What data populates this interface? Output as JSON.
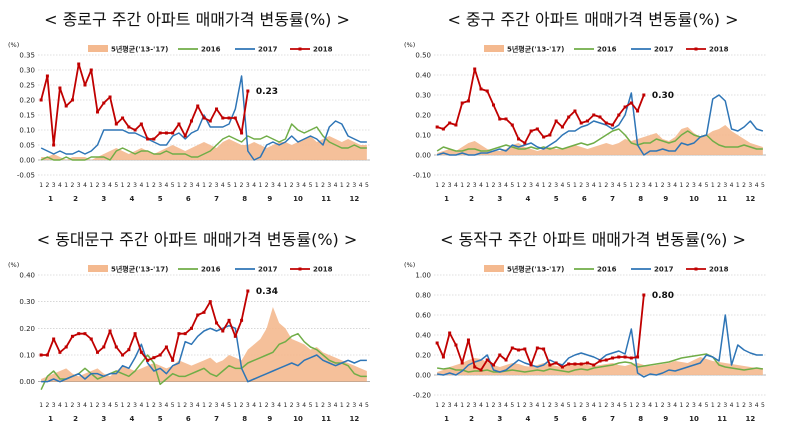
{
  "colors": {
    "avg": "#f4b98f",
    "y2016": "#70ad47",
    "y2017": "#2e75b6",
    "y2018": "#c00000",
    "grid": "#bfbfbf"
  },
  "chart_data": [
    {
      "type": "line",
      "title": "< 종로구 주간 아파트 매매가격 변동률(%) >",
      "ylabel": "(%)",
      "ylim": [
        -0.05,
        0.35
      ],
      "yticks": [
        "0.35",
        "0.30",
        "0.25",
        "0.20",
        "0.15",
        "0.10",
        "0.05",
        "0.00",
        "-0.05"
      ],
      "ytick_values": [
        0.35,
        0.3,
        0.25,
        0.2,
        0.15,
        0.1,
        0.05,
        0.0,
        -0.05
      ],
      "months": [
        "1",
        "2",
        "3",
        "4",
        "5",
        "6",
        "7",
        "8",
        "9",
        "10",
        "11",
        "12"
      ],
      "weeks_per_month": [
        4,
        4,
        5,
        4,
        5,
        4,
        5,
        4,
        4,
        5,
        4,
        5
      ],
      "legend": [
        "5년평균('13-'17)",
        "2016",
        "2017",
        "2018"
      ],
      "annotation": "0.23",
      "series": [
        {
          "name": "5년평균('13-'17)",
          "values": [
            0.01,
            0.01,
            0.02,
            0.01,
            0.0,
            0.01,
            0.01,
            0.01,
            0.0,
            0.01,
            0.02,
            0.03,
            0.04,
            0.03,
            0.02,
            0.03,
            0.04,
            0.03,
            0.02,
            0.03,
            0.04,
            0.05,
            0.04,
            0.03,
            0.04,
            0.05,
            0.06,
            0.05,
            0.04,
            0.06,
            0.07,
            0.06,
            0.05,
            0.05,
            0.06,
            0.05,
            0.04,
            0.05,
            0.06,
            0.06,
            0.05,
            0.06,
            0.07,
            0.08,
            0.06,
            0.07,
            0.08,
            0.07,
            0.06,
            0.07,
            0.06,
            0.05,
            0.05
          ]
        },
        {
          "name": "2016",
          "values": [
            0.0,
            0.01,
            0.0,
            0.0,
            0.01,
            0.0,
            0.0,
            0.0,
            0.01,
            0.01,
            0.01,
            0.0,
            0.03,
            0.04,
            0.03,
            0.02,
            0.03,
            0.03,
            0.02,
            0.02,
            0.03,
            0.02,
            0.02,
            0.02,
            0.01,
            0.01,
            0.02,
            0.03,
            0.05,
            0.07,
            0.08,
            0.07,
            0.06,
            0.08,
            0.07,
            0.07,
            0.08,
            0.07,
            0.06,
            0.07,
            0.12,
            0.1,
            0.09,
            0.1,
            0.11,
            0.08,
            0.06,
            0.05,
            0.04,
            0.04,
            0.05,
            0.04,
            0.04
          ]
        },
        {
          "name": "2017",
          "values": [
            0.04,
            0.03,
            0.02,
            0.03,
            0.02,
            0.02,
            0.03,
            0.02,
            0.03,
            0.05,
            0.1,
            0.1,
            0.1,
            0.1,
            0.09,
            0.09,
            0.08,
            0.07,
            0.06,
            0.05,
            0.05,
            0.08,
            0.09,
            0.07,
            0.09,
            0.1,
            0.15,
            0.11,
            0.11,
            0.11,
            0.12,
            0.17,
            0.28,
            0.03,
            0.0,
            0.01,
            0.05,
            0.06,
            0.05,
            0.06,
            0.08,
            0.06,
            0.07,
            0.08,
            0.07,
            0.05,
            0.11,
            0.13,
            0.12,
            0.08,
            0.07,
            0.06,
            0.06
          ]
        },
        {
          "name": "2018",
          "values": [
            0.2,
            0.28,
            0.05,
            0.24,
            0.18,
            0.2,
            0.32,
            0.25,
            0.3,
            0.16,
            0.19,
            0.21,
            0.12,
            0.14,
            0.11,
            0.1,
            0.12,
            0.07,
            0.07,
            0.09,
            0.09,
            0.09,
            0.12,
            0.08,
            0.13,
            0.18,
            0.14,
            0.13,
            0.17,
            0.14,
            0.14,
            0.14,
            0.09,
            0.23
          ]
        }
      ]
    },
    {
      "type": "line",
      "title": "< 중구 주간 아파트 매매가격 변동률(%) >",
      "ylabel": "(%)",
      "ylim": [
        -0.1,
        0.5
      ],
      "yticks": [
        "0.50",
        "0.40",
        "0.30",
        "0.20",
        "0.10",
        "0.00",
        "-0.10"
      ],
      "ytick_values": [
        0.5,
        0.4,
        0.3,
        0.2,
        0.1,
        0.0,
        -0.1
      ],
      "months": [
        "1",
        "2",
        "3",
        "4",
        "5",
        "6",
        "7",
        "8",
        "9",
        "10",
        "11",
        "12"
      ],
      "weeks_per_month": [
        4,
        4,
        5,
        4,
        5,
        4,
        5,
        4,
        4,
        5,
        4,
        5
      ],
      "legend": [
        "5년평균('13-'17)",
        "2016",
        "2017",
        "2018"
      ],
      "annotation": "0.30",
      "series": [
        {
          "name": "5년평균('13-'17)",
          "values": [
            0.01,
            0.02,
            0.03,
            0.02,
            0.04,
            0.06,
            0.07,
            0.05,
            0.03,
            0.02,
            0.02,
            0.03,
            0.05,
            0.06,
            0.04,
            0.03,
            0.02,
            0.03,
            0.04,
            0.03,
            0.03,
            0.04,
            0.05,
            0.04,
            0.03,
            0.04,
            0.05,
            0.06,
            0.05,
            0.06,
            0.08,
            0.07,
            0.08,
            0.09,
            0.1,
            0.11,
            0.08,
            0.07,
            0.09,
            0.13,
            0.14,
            0.11,
            0.09,
            0.1,
            0.12,
            0.13,
            0.15,
            0.12,
            0.1,
            0.08,
            0.06,
            0.05,
            0.04
          ]
        },
        {
          "name": "2016",
          "values": [
            0.02,
            0.04,
            0.03,
            0.02,
            0.02,
            0.03,
            0.03,
            0.02,
            0.02,
            0.03,
            0.04,
            0.05,
            0.04,
            0.03,
            0.03,
            0.04,
            0.03,
            0.04,
            0.03,
            0.04,
            0.03,
            0.04,
            0.05,
            0.06,
            0.05,
            0.06,
            0.08,
            0.1,
            0.12,
            0.13,
            0.1,
            0.06,
            0.05,
            0.06,
            0.06,
            0.08,
            0.07,
            0.06,
            0.07,
            0.1,
            0.12,
            0.1,
            0.09,
            0.1,
            0.07,
            0.05,
            0.04,
            0.04,
            0.04,
            0.05,
            0.04,
            0.03,
            0.03
          ]
        },
        {
          "name": "2017",
          "values": [
            0.0,
            0.01,
            0.0,
            0.0,
            0.01,
            0.0,
            0.0,
            0.01,
            0.01,
            0.02,
            0.03,
            0.02,
            0.05,
            0.04,
            0.05,
            0.06,
            0.04,
            0.03,
            0.05,
            0.07,
            0.1,
            0.12,
            0.12,
            0.14,
            0.15,
            0.17,
            0.16,
            0.15,
            0.13,
            0.15,
            0.2,
            0.31,
            0.05,
            0.0,
            0.02,
            0.02,
            0.03,
            0.02,
            0.02,
            0.06,
            0.05,
            0.06,
            0.09,
            0.1,
            0.28,
            0.3,
            0.27,
            0.13,
            0.12,
            0.14,
            0.17,
            0.13,
            0.12
          ]
        },
        {
          "name": "2018",
          "values": [
            0.14,
            0.13,
            0.16,
            0.15,
            0.26,
            0.27,
            0.43,
            0.33,
            0.32,
            0.25,
            0.18,
            0.18,
            0.15,
            0.08,
            0.06,
            0.12,
            0.13,
            0.09,
            0.1,
            0.17,
            0.14,
            0.19,
            0.22,
            0.16,
            0.17,
            0.2,
            0.19,
            0.16,
            0.15,
            0.2,
            0.24,
            0.26,
            0.22,
            0.3
          ]
        }
      ]
    },
    {
      "type": "line",
      "title": "< 동대문구 주간 아파트 매매가격 변동률(%) >",
      "ylabel": "(%)",
      "ylim": [
        -0.05,
        0.4
      ],
      "yticks": [
        "0.40",
        "0.30",
        "0.20",
        "0.10",
        "0.00"
      ],
      "ytick_values": [
        0.4,
        0.3,
        0.2,
        0.1,
        0.0
      ],
      "months": [
        "1",
        "2",
        "3",
        "4",
        "5",
        "6",
        "7",
        "8",
        "9",
        "10",
        "11",
        "12"
      ],
      "weeks_per_month": [
        4,
        4,
        5,
        4,
        5,
        4,
        5,
        4,
        4,
        5,
        4,
        5
      ],
      "legend": [
        "5년평균('13-'17)",
        "2016",
        "2017",
        "2018"
      ],
      "annotation": "0.34",
      "series": [
        {
          "name": "5년평균('13-'17)",
          "values": [
            0.01,
            0.02,
            0.03,
            0.04,
            0.05,
            0.03,
            0.02,
            0.03,
            0.04,
            0.05,
            0.03,
            0.02,
            0.04,
            0.06,
            0.05,
            0.04,
            0.05,
            0.06,
            0.07,
            0.06,
            0.05,
            0.06,
            0.08,
            0.07,
            0.06,
            0.07,
            0.08,
            0.09,
            0.07,
            0.08,
            0.1,
            0.09,
            0.08,
            0.12,
            0.14,
            0.16,
            0.2,
            0.28,
            0.22,
            0.2,
            0.16,
            0.15,
            0.14,
            0.12,
            0.13,
            0.11,
            0.1,
            0.09,
            0.08,
            0.07,
            0.06,
            0.05,
            0.04
          ]
        },
        {
          "name": "2016",
          "values": [
            -0.03,
            0.02,
            0.04,
            0.01,
            0.01,
            0.02,
            0.03,
            0.05,
            0.03,
            0.01,
            0.02,
            0.03,
            0.04,
            0.03,
            0.02,
            0.04,
            0.07,
            0.1,
            0.07,
            -0.01,
            0.01,
            0.03,
            0.02,
            0.02,
            0.03,
            0.04,
            0.05,
            0.03,
            0.02,
            0.04,
            0.06,
            0.05,
            0.05,
            0.07,
            0.08,
            0.09,
            0.1,
            0.11,
            0.14,
            0.15,
            0.17,
            0.18,
            0.15,
            0.13,
            0.12,
            0.1,
            0.08,
            0.07,
            0.07,
            0.06,
            0.03,
            0.02,
            0.02
          ]
        },
        {
          "name": "2017",
          "values": [
            0.0,
            0.0,
            0.01,
            0.0,
            0.01,
            0.02,
            0.03,
            0.01,
            0.03,
            0.03,
            0.02,
            0.03,
            0.03,
            0.06,
            0.05,
            0.09,
            0.14,
            0.07,
            0.04,
            0.05,
            0.03,
            0.06,
            0.07,
            0.15,
            0.14,
            0.17,
            0.19,
            0.2,
            0.19,
            0.2,
            0.21,
            0.2,
            0.05,
            0.0,
            0.01,
            0.02,
            0.03,
            0.04,
            0.05,
            0.06,
            0.07,
            0.06,
            0.08,
            0.09,
            0.1,
            0.08,
            0.07,
            0.06,
            0.07,
            0.08,
            0.07,
            0.08,
            0.08
          ]
        },
        {
          "name": "2018",
          "values": [
            0.1,
            0.1,
            0.16,
            0.11,
            0.13,
            0.17,
            0.18,
            0.18,
            0.16,
            0.11,
            0.13,
            0.19,
            0.13,
            0.1,
            0.12,
            0.18,
            0.11,
            0.08,
            0.09,
            0.1,
            0.13,
            0.08,
            0.18,
            0.18,
            0.2,
            0.25,
            0.26,
            0.3,
            0.22,
            0.19,
            0.23,
            0.17,
            0.23,
            0.34
          ]
        }
      ]
    },
    {
      "type": "line",
      "title": "< 동작구 주간 아파트 매매가격 변동률(%) >",
      "ylabel": "(%)",
      "ylim": [
        -0.2,
        1.0
      ],
      "yticks": [
        "1.00",
        "0.80",
        "0.60",
        "0.40",
        "0.20",
        "0.00",
        "-0.20"
      ],
      "ytick_values": [
        1.0,
        0.8,
        0.6,
        0.4,
        0.2,
        0.0,
        -0.2
      ],
      "months": [
        "1",
        "2",
        "3",
        "4",
        "5",
        "6",
        "7",
        "8",
        "9",
        "10",
        "11",
        "12"
      ],
      "weeks_per_month": [
        4,
        4,
        5,
        4,
        5,
        4,
        5,
        4,
        4,
        5,
        4,
        5
      ],
      "legend": [
        "5년평균('13-'17)",
        "2016",
        "2017",
        "2018"
      ],
      "annotation": "0.80",
      "series": [
        {
          "name": "5년평균('13-'17)",
          "values": [
            0.03,
            0.05,
            0.08,
            0.1,
            0.12,
            0.15,
            0.17,
            0.16,
            0.13,
            0.1,
            0.08,
            0.1,
            0.12,
            0.11,
            0.09,
            0.08,
            0.1,
            0.12,
            0.11,
            0.09,
            0.08,
            0.1,
            0.12,
            0.11,
            0.1,
            0.09,
            0.1,
            0.11,
            0.12,
            0.1,
            0.09,
            0.11,
            0.12,
            0.1,
            0.09,
            0.1,
            0.11,
            0.12,
            0.14,
            0.13,
            0.12,
            0.15,
            0.18,
            0.16,
            0.14,
            0.13,
            0.12,
            0.11,
            0.1,
            0.09,
            0.08,
            0.07,
            0.07
          ]
        },
        {
          "name": "2016",
          "values": [
            0.07,
            0.06,
            0.07,
            0.05,
            0.05,
            0.03,
            0.04,
            0.04,
            0.05,
            0.03,
            0.03,
            0.04,
            0.05,
            0.04,
            0.03,
            0.04,
            0.05,
            0.04,
            0.06,
            0.05,
            0.04,
            0.03,
            0.05,
            0.06,
            0.05,
            0.07,
            0.08,
            0.09,
            0.1,
            0.12,
            0.13,
            0.12,
            0.08,
            0.09,
            0.1,
            0.11,
            0.12,
            0.13,
            0.15,
            0.17,
            0.18,
            0.19,
            0.2,
            0.21,
            0.18,
            0.1,
            0.08,
            0.07,
            0.06,
            0.05,
            0.06,
            0.07,
            0.06
          ]
        },
        {
          "name": "2017",
          "values": [
            0.01,
            0.0,
            0.02,
            0.0,
            0.04,
            0.1,
            0.13,
            0.15,
            0.2,
            0.05,
            0.03,
            0.05,
            0.1,
            0.15,
            0.12,
            0.1,
            0.08,
            0.1,
            0.15,
            0.12,
            0.1,
            0.17,
            0.2,
            0.22,
            0.2,
            0.18,
            0.15,
            0.2,
            0.22,
            0.24,
            0.21,
            0.46,
            0.02,
            -0.02,
            0.01,
            0.0,
            0.02,
            0.05,
            0.04,
            0.06,
            0.08,
            0.1,
            0.12,
            0.2,
            0.18,
            0.14,
            0.6,
            0.1,
            0.3,
            0.25,
            0.22,
            0.2,
            0.2
          ]
        },
        {
          "name": "2018",
          "values": [
            0.32,
            0.18,
            0.42,
            0.3,
            0.12,
            0.35,
            0.08,
            0.05,
            0.15,
            0.1,
            0.2,
            0.15,
            0.27,
            0.25,
            0.26,
            0.1,
            0.27,
            0.26,
            0.1,
            0.12,
            0.08,
            0.11,
            0.11,
            0.11,
            0.12,
            0.1,
            0.14,
            0.15,
            0.17,
            0.18,
            0.18,
            0.17,
            0.18,
            0.8
          ]
        }
      ]
    }
  ]
}
